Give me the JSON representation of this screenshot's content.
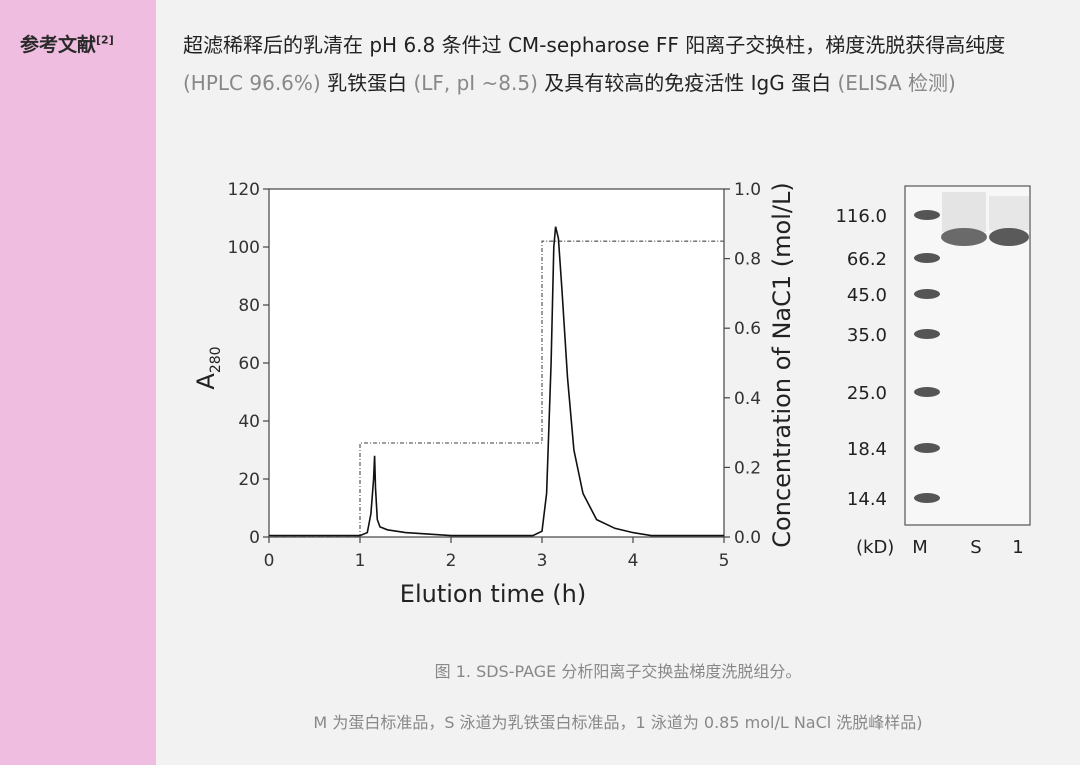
{
  "sidebar": {
    "label": "参考文献",
    "ref": "[2]"
  },
  "summary": {
    "part1": "超滤稀释后的乳清在 pH 6.8 条件过 CM-sepharose FF 阳离子交换柱，梯度洗脱获得高纯度 ",
    "hplc": "(HPLC 96.6%)",
    "part2": " 乳铁蛋白 ",
    "lf": "(LF, pI ~8.5)",
    "part3": " 及具有较高的免疫活性 IgG 蛋白 ",
    "elisa": "(ELISA 检测)"
  },
  "chart_data": {
    "type": "line",
    "xlabel": "Elution time (h)",
    "ylabel": "A280",
    "ylabel_main": "A",
    "ylabel_sub": "280",
    "y2label": "Concentration of NaC1 (mol/L)",
    "xlim": [
      0,
      5
    ],
    "ylim": [
      0,
      120
    ],
    "y2lim": [
      0,
      1.0
    ],
    "xticks": [
      "0",
      "1",
      "2",
      "3",
      "4",
      "5"
    ],
    "yticks": [
      "0",
      "20",
      "40",
      "60",
      "80",
      "100",
      "120"
    ],
    "y2ticks": [
      "0.0",
      "0.2",
      "0.4",
      "0.6",
      "0.8",
      "1.0"
    ],
    "series": [
      {
        "role": "A280 absorbance (solid)",
        "x": [
          0,
          1.0,
          1.08,
          1.12,
          1.15,
          1.16,
          1.17,
          1.19,
          1.22,
          1.3,
          1.5,
          1.75,
          2.0,
          2.9,
          3.0,
          3.05,
          3.1,
          3.13,
          3.15,
          3.18,
          3.22,
          3.28,
          3.35,
          3.45,
          3.6,
          3.8,
          4.0,
          4.2,
          5.0
        ],
        "y": [
          0.5,
          0.5,
          1.5,
          8,
          20,
          28,
          17,
          6,
          3.5,
          2.5,
          1.5,
          1,
          0.5,
          0.5,
          2,
          15,
          60,
          100,
          107,
          103,
          85,
          55,
          30,
          15,
          6,
          3,
          1.5,
          0.5,
          0.5
        ]
      },
      {
        "role": "NaCl step gradient (dashed)",
        "x": [
          0,
          1.0,
          1.0,
          3.0,
          3.0,
          5.0
        ],
        "y2": [
          0,
          0,
          0.27,
          0.27,
          0.85,
          0.85
        ]
      }
    ]
  },
  "gel": {
    "markers": [
      "116.0",
      "66.2",
      "45.0",
      "35.0",
      "25.0",
      "18.4",
      "14.4"
    ],
    "unit": "(kD)",
    "lanes": [
      "M",
      "S",
      "1"
    ]
  },
  "captions": {
    "caption1": "图 1. SDS-PAGE 分析阳离子交换盐梯度洗脱组分。",
    "caption2": "M 为蛋白标准品，S 泳道为乳铁蛋白标准品，1 泳道为 0.85 mol/L NaCl 洗脱峰样品)"
  }
}
